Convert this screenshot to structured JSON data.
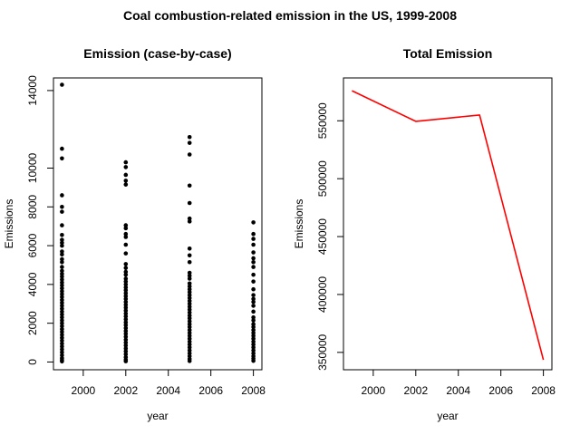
{
  "figure": {
    "title": "Coal combustion-related emission in the US, 1999-2008"
  },
  "chart_data": [
    {
      "type": "scatter",
      "title": "Emission (case-by-case)",
      "xlabel": "year",
      "ylabel": "Emissions",
      "xlim": [
        1998.6,
        2008.4
      ],
      "ylim": [
        -400,
        14650
      ],
      "xticks": [
        2000,
        2002,
        2004,
        2006,
        2008
      ],
      "yticks": [
        0,
        2000,
        4000,
        6000,
        8000,
        10000,
        14000
      ],
      "grid": false,
      "marker_color": "#000000",
      "points": [
        [
          1999,
          14300
        ],
        [
          1999,
          11000
        ],
        [
          1999,
          10500
        ],
        [
          1999,
          8600
        ],
        [
          1999,
          8000
        ],
        [
          1999,
          7750
        ],
        [
          1999,
          7050
        ],
        [
          1999,
          6550
        ],
        [
          1999,
          6300
        ],
        [
          1999,
          6150
        ],
        [
          1999,
          6000
        ],
        [
          1999,
          5700
        ],
        [
          1999,
          5550
        ],
        [
          1999,
          5300
        ],
        [
          1999,
          5150
        ],
        [
          1999,
          4900
        ],
        [
          1999,
          4700
        ],
        [
          1999,
          4550
        ],
        [
          1999,
          4400
        ],
        [
          1999,
          4250
        ],
        [
          1999,
          4100
        ],
        [
          1999,
          3950
        ],
        [
          1999,
          3800
        ],
        [
          1999,
          3650
        ],
        [
          1999,
          3500
        ],
        [
          1999,
          3350
        ],
        [
          1999,
          3200
        ],
        [
          1999,
          3050
        ],
        [
          1999,
          2900
        ],
        [
          1999,
          2750
        ],
        [
          1999,
          2600
        ],
        [
          1999,
          2450
        ],
        [
          1999,
          2300
        ],
        [
          1999,
          2150
        ],
        [
          1999,
          2000
        ],
        [
          1999,
          1850
        ],
        [
          1999,
          1700
        ],
        [
          1999,
          1550
        ],
        [
          1999,
          1400
        ],
        [
          1999,
          1250
        ],
        [
          1999,
          1100
        ],
        [
          1999,
          950
        ],
        [
          1999,
          800
        ],
        [
          1999,
          650
        ],
        [
          1999,
          500
        ],
        [
          1999,
          350
        ],
        [
          1999,
          200
        ],
        [
          1999,
          100
        ],
        [
          1999,
          30
        ],
        [
          2002,
          10300
        ],
        [
          2002,
          10050
        ],
        [
          2002,
          9650
        ],
        [
          2002,
          9350
        ],
        [
          2002,
          9150
        ],
        [
          2002,
          7050
        ],
        [
          2002,
          6900
        ],
        [
          2002,
          6600
        ],
        [
          2002,
          6450
        ],
        [
          2002,
          6050
        ],
        [
          2002,
          5600
        ],
        [
          2002,
          5050
        ],
        [
          2002,
          4850
        ],
        [
          2002,
          4650
        ],
        [
          2002,
          4500
        ],
        [
          2002,
          4300
        ],
        [
          2002,
          4150
        ],
        [
          2002,
          4000
        ],
        [
          2002,
          3850
        ],
        [
          2002,
          3700
        ],
        [
          2002,
          3550
        ],
        [
          2002,
          3400
        ],
        [
          2002,
          3250
        ],
        [
          2002,
          3100
        ],
        [
          2002,
          2950
        ],
        [
          2002,
          2800
        ],
        [
          2002,
          2650
        ],
        [
          2002,
          2500
        ],
        [
          2002,
          2350
        ],
        [
          2002,
          2200
        ],
        [
          2002,
          2050
        ],
        [
          2002,
          1900
        ],
        [
          2002,
          1750
        ],
        [
          2002,
          1600
        ],
        [
          2002,
          1450
        ],
        [
          2002,
          1300
        ],
        [
          2002,
          1150
        ],
        [
          2002,
          1000
        ],
        [
          2002,
          850
        ],
        [
          2002,
          700
        ],
        [
          2002,
          550
        ],
        [
          2002,
          400
        ],
        [
          2002,
          250
        ],
        [
          2002,
          120
        ],
        [
          2002,
          40
        ],
        [
          2005,
          11600
        ],
        [
          2005,
          11300
        ],
        [
          2005,
          10700
        ],
        [
          2005,
          9100
        ],
        [
          2005,
          8200
        ],
        [
          2005,
          7400
        ],
        [
          2005,
          7250
        ],
        [
          2005,
          5850
        ],
        [
          2005,
          5500
        ],
        [
          2005,
          5150
        ],
        [
          2005,
          4600
        ],
        [
          2005,
          4450
        ],
        [
          2005,
          4300
        ],
        [
          2005,
          4050
        ],
        [
          2005,
          3900
        ],
        [
          2005,
          3750
        ],
        [
          2005,
          3600
        ],
        [
          2005,
          3450
        ],
        [
          2005,
          3300
        ],
        [
          2005,
          3150
        ],
        [
          2005,
          3000
        ],
        [
          2005,
          2850
        ],
        [
          2005,
          2700
        ],
        [
          2005,
          2550
        ],
        [
          2005,
          2400
        ],
        [
          2005,
          2250
        ],
        [
          2005,
          2100
        ],
        [
          2005,
          1950
        ],
        [
          2005,
          1800
        ],
        [
          2005,
          1650
        ],
        [
          2005,
          1500
        ],
        [
          2005,
          1350
        ],
        [
          2005,
          1200
        ],
        [
          2005,
          1050
        ],
        [
          2005,
          900
        ],
        [
          2005,
          750
        ],
        [
          2005,
          600
        ],
        [
          2005,
          450
        ],
        [
          2005,
          300
        ],
        [
          2005,
          160
        ],
        [
          2005,
          50
        ],
        [
          2008,
          7200
        ],
        [
          2008,
          6600
        ],
        [
          2008,
          6350
        ],
        [
          2008,
          6050
        ],
        [
          2008,
          5650
        ],
        [
          2008,
          5350
        ],
        [
          2008,
          5150
        ],
        [
          2008,
          4900
        ],
        [
          2008,
          4500
        ],
        [
          2008,
          4150
        ],
        [
          2008,
          3750
        ],
        [
          2008,
          3450
        ],
        [
          2008,
          3250
        ],
        [
          2008,
          3100
        ],
        [
          2008,
          2900
        ],
        [
          2008,
          2600
        ],
        [
          2008,
          2300
        ],
        [
          2008,
          2150
        ],
        [
          2008,
          1950
        ],
        [
          2008,
          1800
        ],
        [
          2008,
          1650
        ],
        [
          2008,
          1500
        ],
        [
          2008,
          1350
        ],
        [
          2008,
          1200
        ],
        [
          2008,
          1050
        ],
        [
          2008,
          900
        ],
        [
          2008,
          750
        ],
        [
          2008,
          600
        ],
        [
          2008,
          450
        ],
        [
          2008,
          300
        ],
        [
          2008,
          180
        ],
        [
          2008,
          60
        ]
      ]
    },
    {
      "type": "line",
      "title": "Total Emission",
      "xlabel": "year",
      "ylabel": "Emissions",
      "xlim": [
        1998.6,
        2008.4
      ],
      "ylim": [
        335000,
        587000
      ],
      "xticks": [
        2000,
        2002,
        2004,
        2006,
        2008
      ],
      "yticks": [
        350000,
        400000,
        450000,
        500000,
        550000
      ],
      "grid": false,
      "series": [
        {
          "color": "#ff0000",
          "x": [
            1999,
            2002,
            2005,
            2008
          ],
          "values": [
            576000,
            549500,
            555000,
            343500
          ]
        }
      ]
    }
  ]
}
